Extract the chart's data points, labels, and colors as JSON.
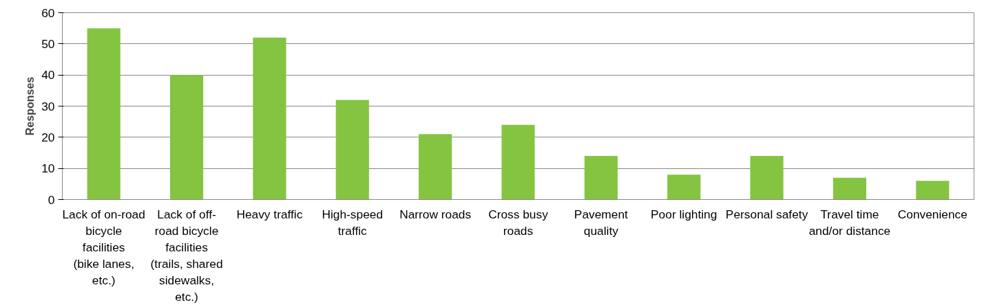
{
  "chart_data": {
    "type": "bar",
    "ylabel": "Responses",
    "categories": [
      "Lack of on-road bicycle facilities (bike lanes, etc.)",
      "Lack of off-road bicycle facilities (trails, shared sidewalks, etc.)",
      "Heavy traffic",
      "High-speed traffic",
      "Narrow roads",
      "Cross busy roads",
      "Pavement quality",
      "Poor lighting",
      "Personal safety",
      "Travel time and/or distance",
      "Convenience"
    ],
    "values": [
      55,
      40,
      52,
      32,
      21,
      24,
      14,
      8,
      14,
      7,
      6
    ],
    "color": "#84c441",
    "ylim": [
      0,
      60
    ],
    "yticks": [
      0,
      10,
      20,
      30,
      40,
      50,
      60
    ],
    "grid": "y"
  }
}
